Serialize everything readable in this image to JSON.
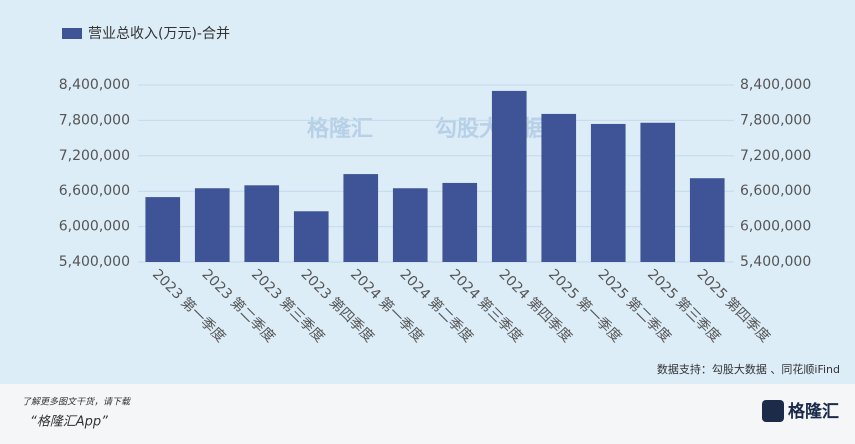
{
  "chart_data": {
    "type": "bar",
    "legend_label": "营业总收入(万元)-合并",
    "categories": [
      "2023 第一季度",
      "2023 第二季度",
      "2023 第三季度",
      "2023 第四季度",
      "2024 第一季度",
      "2024 第二季度",
      "2024 第三季度",
      "2024 第四季度",
      "2025 第一季度",
      "2025 第二季度",
      "2025 第三季度",
      "2025 第四季度"
    ],
    "values": [
      6500000,
      6650000,
      6700000,
      6260000,
      6890000,
      6650000,
      6740000,
      8300000,
      7910000,
      7740000,
      7760000,
      6820000
    ],
    "color": "#3f5496",
    "ylim": [
      5400000,
      8400000
    ],
    "yticks": [
      {
        "value": 5400000,
        "label": "5,400,000"
      },
      {
        "value": 6000000,
        "label": "6,000,000"
      },
      {
        "value": 6600000,
        "label": "6,600,000"
      },
      {
        "value": 7200000,
        "label": "7,200,000"
      },
      {
        "value": 7800000,
        "label": "7,800,000"
      },
      {
        "value": 8400000,
        "label": "8,400,000"
      }
    ],
    "y2lim": [
      5400000,
      8400000
    ],
    "y2ticks": [
      {
        "value": 5400000,
        "label": "5,400,000"
      },
      {
        "value": 6000000,
        "label": "6,000,000"
      },
      {
        "value": 6600000,
        "label": "6,600,000"
      },
      {
        "value": 7200000,
        "label": "7,200,000"
      },
      {
        "value": 7800000,
        "label": "7,800,000"
      },
      {
        "value": 8400000,
        "label": "8,400,000"
      }
    ],
    "grid": true,
    "source": "数据支持：勾股大数据 、同花顺iFind"
  },
  "watermark": {
    "brand": "格隆汇",
    "data": "勾股大数据"
  },
  "footer": {
    "line1": "了解更多图文干货，请下载",
    "line2": "“格隆汇App”",
    "logo": "格隆汇"
  }
}
